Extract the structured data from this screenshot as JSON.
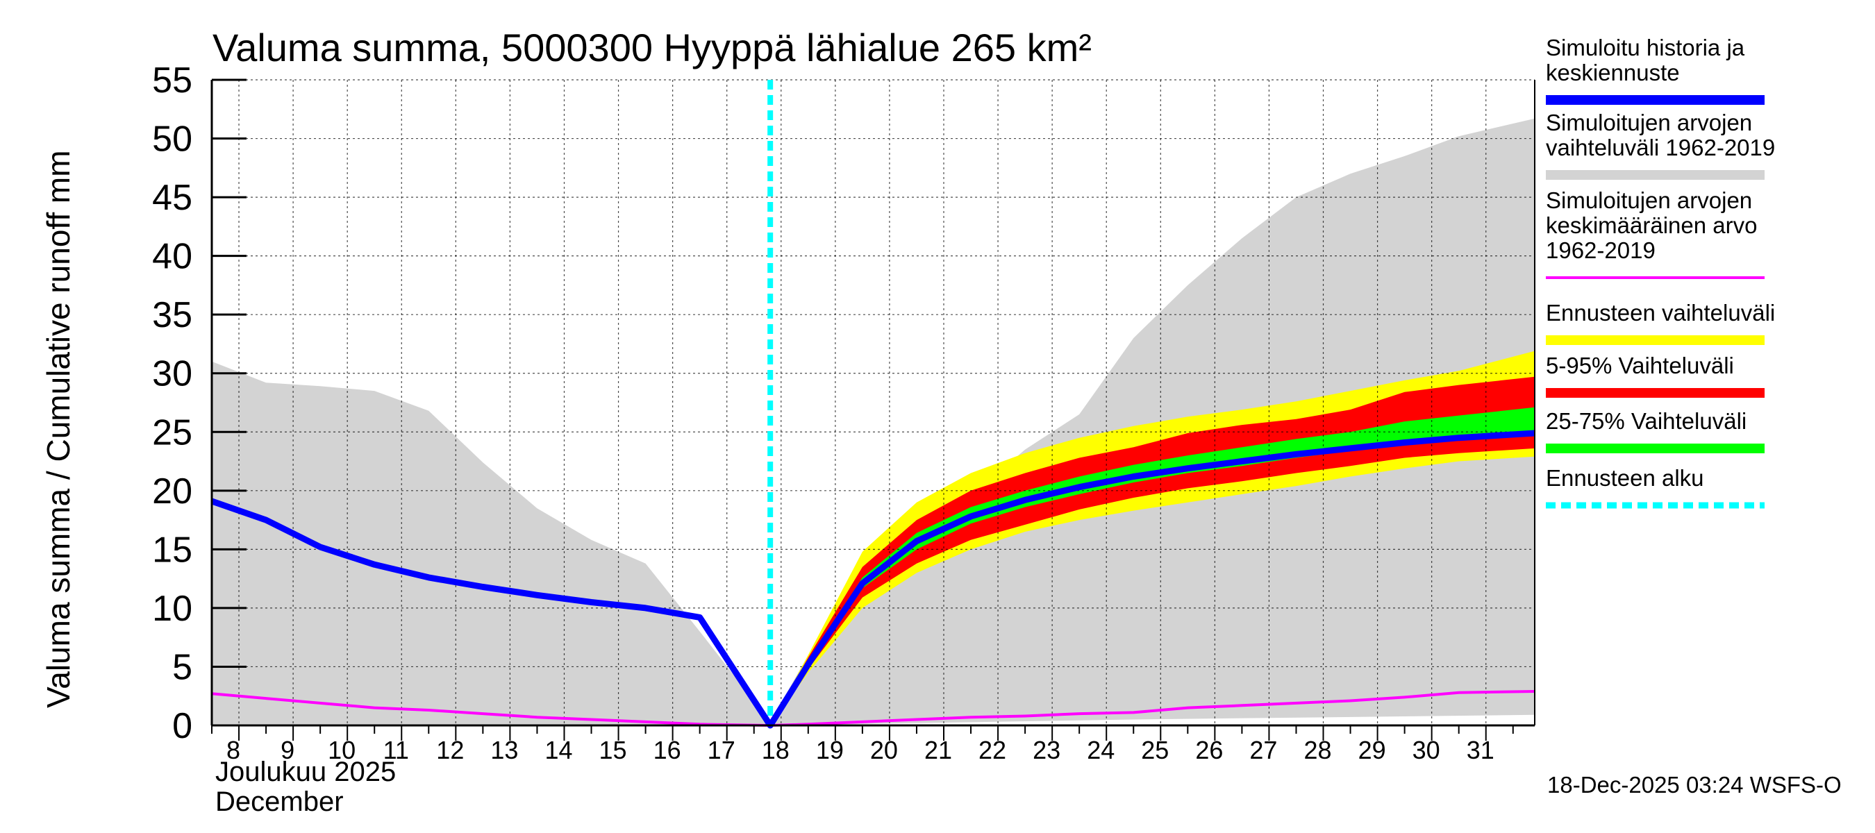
{
  "chart_data": {
    "type": "area",
    "title": "Valuma summa, 5000300 Hyyppä lähialue 265 km²",
    "ylabel": "Valuma summa / Cumulative runoff    mm",
    "ylim": [
      0,
      55
    ],
    "yticks": [
      "0",
      "5",
      "10",
      "15",
      "20",
      "25",
      "30",
      "35",
      "40",
      "45",
      "50",
      "55"
    ],
    "x_start_day": 7.5,
    "x_end_day": 31.9,
    "xticks": [
      "8",
      "9",
      "10",
      "11",
      "12",
      "13",
      "14",
      "15",
      "16",
      "17",
      "18",
      "19",
      "20",
      "21",
      "22",
      "23",
      "24",
      "25",
      "26",
      "27",
      "28",
      "29",
      "30",
      "31"
    ],
    "xlabel_month_fi": "Joulukuu  2025",
    "xlabel_month_en": "December",
    "forecast_start_day": 17.8,
    "footer": "18-Dec-2025 03:24 WSFS-O",
    "colors": {
      "history_range": "#d3d3d3",
      "history_median": "#0000ff",
      "mean": "#ff00ff",
      "forecast_range": "#ffff00",
      "p5_95": "#ff0000",
      "p25_75": "#00ff00",
      "forecast_start": "#00ffff"
    },
    "series": {
      "history_range_upper": {
        "x": [
          7.5,
          8.5,
          9.5,
          10.5,
          11.5,
          12.5,
          13.5,
          14.5,
          15.5,
          16.5,
          17.8,
          18.5,
          19.5,
          20.5,
          21.5,
          22.5,
          23.5,
          24.5,
          25.5,
          26.5,
          27.5,
          28.5,
          29.5,
          30.5,
          31.9
        ],
        "y": [
          31,
          29.2,
          28.9,
          28.5,
          26.8,
          22.4,
          18.5,
          15.8,
          13.8,
          8.0,
          0.3,
          6.0,
          11.5,
          15.5,
          19.5,
          23.5,
          26.5,
          33.0,
          37.5,
          41.5,
          45.0,
          47.0,
          48.5,
          50.2,
          51.7
        ]
      },
      "history_range_lower": {
        "x": [
          7.5,
          16.5,
          17.8,
          20.5,
          24.5,
          31.9
        ],
        "y": [
          0.0,
          0.0,
          0.0,
          0.2,
          0.5,
          0.9
        ]
      },
      "mean": {
        "x": [
          7.5,
          8.5,
          9.5,
          10.5,
          11.5,
          12.5,
          13.5,
          14.5,
          15.5,
          16.5,
          17.8,
          18.5,
          19.5,
          20.5,
          21.5,
          22.5,
          23.5,
          24.5,
          25.5,
          26.5,
          27.5,
          28.5,
          29.5,
          30.5,
          31.9
        ],
        "y": [
          2.7,
          2.3,
          1.9,
          1.5,
          1.3,
          1.0,
          0.7,
          0.5,
          0.3,
          0.1,
          0.0,
          0.1,
          0.3,
          0.5,
          0.7,
          0.8,
          1.0,
          1.1,
          1.5,
          1.7,
          1.9,
          2.1,
          2.4,
          2.8,
          2.9
        ]
      },
      "forecast_x": [
        17.8,
        18.5,
        19.5,
        20.5,
        21.5,
        22.5,
        23.5,
        24.5,
        25.5,
        26.5,
        27.5,
        28.5,
        29.5,
        30.5,
        31.9
      ],
      "forecast_max": [
        0.0,
        6.0,
        14.8,
        19.0,
        21.5,
        23.2,
        24.5,
        25.5,
        26.3,
        26.9,
        27.6,
        28.5,
        29.4,
        30.2,
        31.9
      ],
      "forecast_min": [
        0.0,
        4.5,
        10.0,
        13.0,
        15.0,
        16.5,
        17.5,
        18.3,
        19.0,
        19.7,
        20.4,
        21.2,
        21.9,
        22.5,
        22.9
      ],
      "p95": [
        0.0,
        5.8,
        13.5,
        17.5,
        20.0,
        21.5,
        22.8,
        23.7,
        24.9,
        25.6,
        26.1,
        26.9,
        28.4,
        29.0,
        29.7
      ],
      "p5": [
        0.0,
        4.8,
        10.9,
        13.8,
        15.8,
        17.1,
        18.4,
        19.4,
        20.2,
        20.8,
        21.5,
        22.1,
        22.8,
        23.2,
        23.6
      ],
      "p75": [
        0.0,
        5.4,
        12.6,
        16.4,
        18.6,
        20.0,
        21.2,
        22.2,
        23.0,
        23.7,
        24.4,
        25.0,
        25.9,
        26.4,
        27.1
      ],
      "p25": [
        0.0,
        5.0,
        11.7,
        15.0,
        17.2,
        18.6,
        19.7,
        20.7,
        21.5,
        22.1,
        22.8,
        23.4,
        23.9,
        24.4,
        24.9
      ],
      "history_median": {
        "x": [
          7.5,
          8.5,
          9.5,
          10.5,
          11.5,
          12.5,
          13.5,
          14.5,
          15.5,
          16.5,
          17.8,
          18.5,
          19.5,
          20.5,
          21.5,
          22.5,
          23.5,
          24.5,
          25.5,
          26.5,
          27.5,
          28.5,
          29.5,
          30.5,
          31.9
        ],
        "y": [
          19.1,
          17.5,
          15.2,
          13.7,
          12.6,
          11.8,
          11.1,
          10.5,
          10.0,
          9.2,
          0.0,
          5.2,
          12.1,
          15.7,
          17.8,
          19.2,
          20.3,
          21.2,
          21.9,
          22.5,
          23.1,
          23.6,
          24.1,
          24.5,
          24.9
        ]
      }
    },
    "legend": [
      {
        "label": "Simuloitu historia ja keskiennuste",
        "lines": [
          "Simuloitu historia ja",
          "keskiennuste"
        ],
        "color": "#0000ff",
        "style": "line"
      },
      {
        "label": "Simuloitujen arvojen vaihteluväli 1962-2019",
        "lines": [
          "Simuloitujen arvojen",
          "vaihteluväli 1962-2019"
        ],
        "color": "#d3d3d3",
        "style": "line"
      },
      {
        "label": "Simuloitujen arvojen keskimääräinen arvo 1962-2019",
        "lines": [
          "Simuloitujen arvojen",
          "keskimääräinen arvo",
          "  1962-2019"
        ],
        "color": "#ff00ff",
        "style": "thin"
      },
      {
        "label": "Ennusteen vaihteluväli",
        "lines": [
          "Ennusteen vaihteluväli"
        ],
        "color": "#ffff00",
        "style": "line"
      },
      {
        "label": "5-95% Vaihteluväli",
        "lines": [
          "5-95% Vaihteluväli"
        ],
        "color": "#ff0000",
        "style": "line"
      },
      {
        "label": "25-75% Vaihteluväli",
        "lines": [
          "25-75% Vaihteluväli"
        ],
        "color": "#00ff00",
        "style": "line"
      },
      {
        "label": "Ennusteen alku",
        "lines": [
          "Ennusteen alku"
        ],
        "color": "#00ffff",
        "style": "dashed"
      }
    ]
  }
}
